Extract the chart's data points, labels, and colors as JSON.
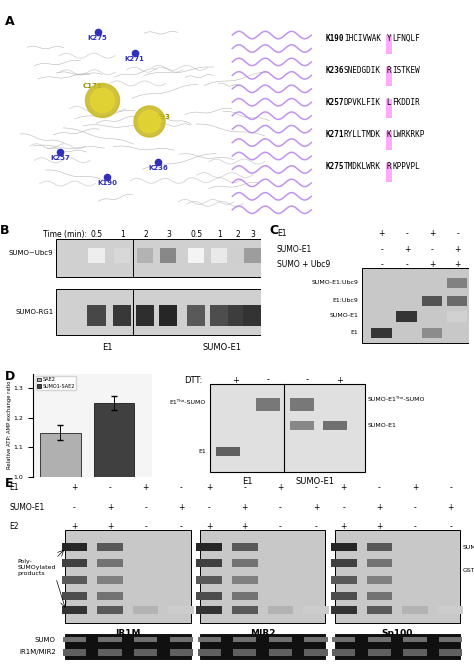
{
  "bg_color": "#ffffff",
  "panel_A_sequence_labels": [
    "K190",
    "K236",
    "K257",
    "K271",
    "K275"
  ],
  "panel_A_sequences": [
    [
      "IHCIVWAK",
      "Y",
      "LFNQLF"
    ],
    [
      "SNEDGDIK",
      "R",
      "ISTKEW"
    ],
    [
      "DPVKLFIK",
      "L",
      "FKDDIR"
    ],
    [
      "RYLLTMDK",
      "K",
      "LWRKRKP"
    ],
    [
      "TMDKLWRK",
      "R",
      "KPPVPL"
    ]
  ],
  "panel_B_time_labels": [
    "0.5",
    "1",
    "2",
    "3",
    "0.5",
    "1",
    "2",
    "3"
  ],
  "panel_B_row1_label": "SUMO~Ubc9",
  "panel_B_row2_label": "SUMO-RG1",
  "panel_B_col1_label": "E1",
  "panel_B_col2_label": "SUMO-E1",
  "panel_C_row1": [
    "+",
    "-",
    "+",
    "-"
  ],
  "panel_C_row2": [
    "-",
    "+",
    "-",
    "+"
  ],
  "panel_C_row3": [
    "-",
    "-",
    "+",
    "+"
  ],
  "panel_C_band_labels": [
    "SUMO-E1:Ubc9",
    "E1:Ubc9",
    "SUMO-E1",
    "E1"
  ],
  "panel_D_bar_values": [
    1.15,
    1.25
  ],
  "panel_D_bar_colors": [
    "#b0b0b0",
    "#404040"
  ],
  "panel_D_bar_labels": [
    "SAE2",
    "SUMO1-SAE2"
  ],
  "panel_D_ylim": [
    1.0,
    1.35
  ],
  "panel_D_yticks": [
    1.0,
    1.1,
    1.2,
    1.3
  ],
  "panel_D_ylabel": "Relative ATP: AMP exchange ratio",
  "panel_E_e1_vals": [
    "+",
    "-",
    "+",
    "-",
    "+",
    "-",
    "+",
    "-",
    "+",
    "-",
    "+",
    "-"
  ],
  "panel_E_sumo_e1_vals": [
    "-",
    "+",
    "-",
    "+",
    "-",
    "+",
    "-",
    "+",
    "-",
    "+",
    "-",
    "+"
  ],
  "panel_E_e2_vals": [
    "+",
    "+",
    "-",
    "-",
    "+",
    "+",
    "-",
    "-",
    "+",
    "+",
    "-",
    "-"
  ],
  "panel_E_groups": [
    "IR1M",
    "MIR2",
    "Sp100"
  ],
  "gel_bg_light": "#c8c8c8",
  "gel_bg_dark": "#181818",
  "band_dark": "#282828",
  "band_mid": "#686868"
}
